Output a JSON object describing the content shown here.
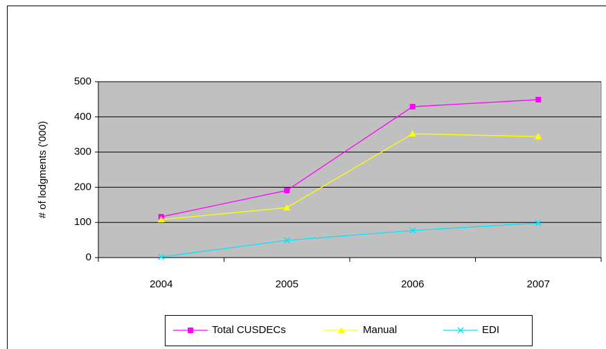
{
  "chart_data": {
    "type": "line",
    "y_label": "# of lodgments ('000)",
    "categories": [
      "2004",
      "2005",
      "2006",
      "2007"
    ],
    "series": [
      {
        "name": "Total CUSDECs",
        "color": "#ff00ff",
        "marker": "square",
        "values": [
          116,
          191,
          429,
          449
        ]
      },
      {
        "name": "Manual",
        "color": "#ffff00",
        "marker": "triangle",
        "values": [
          108,
          142,
          352,
          344
        ]
      },
      {
        "name": "EDI",
        "color": "#00e5ff",
        "marker": "x",
        "values": [
          2,
          49,
          77,
          98
        ]
      }
    ],
    "ylim": [
      0,
      500
    ],
    "yticks": [
      0,
      100,
      200,
      300,
      400,
      500
    ],
    "grid": true,
    "plot_background": "#c0c0c0",
    "legend": "bottom"
  }
}
